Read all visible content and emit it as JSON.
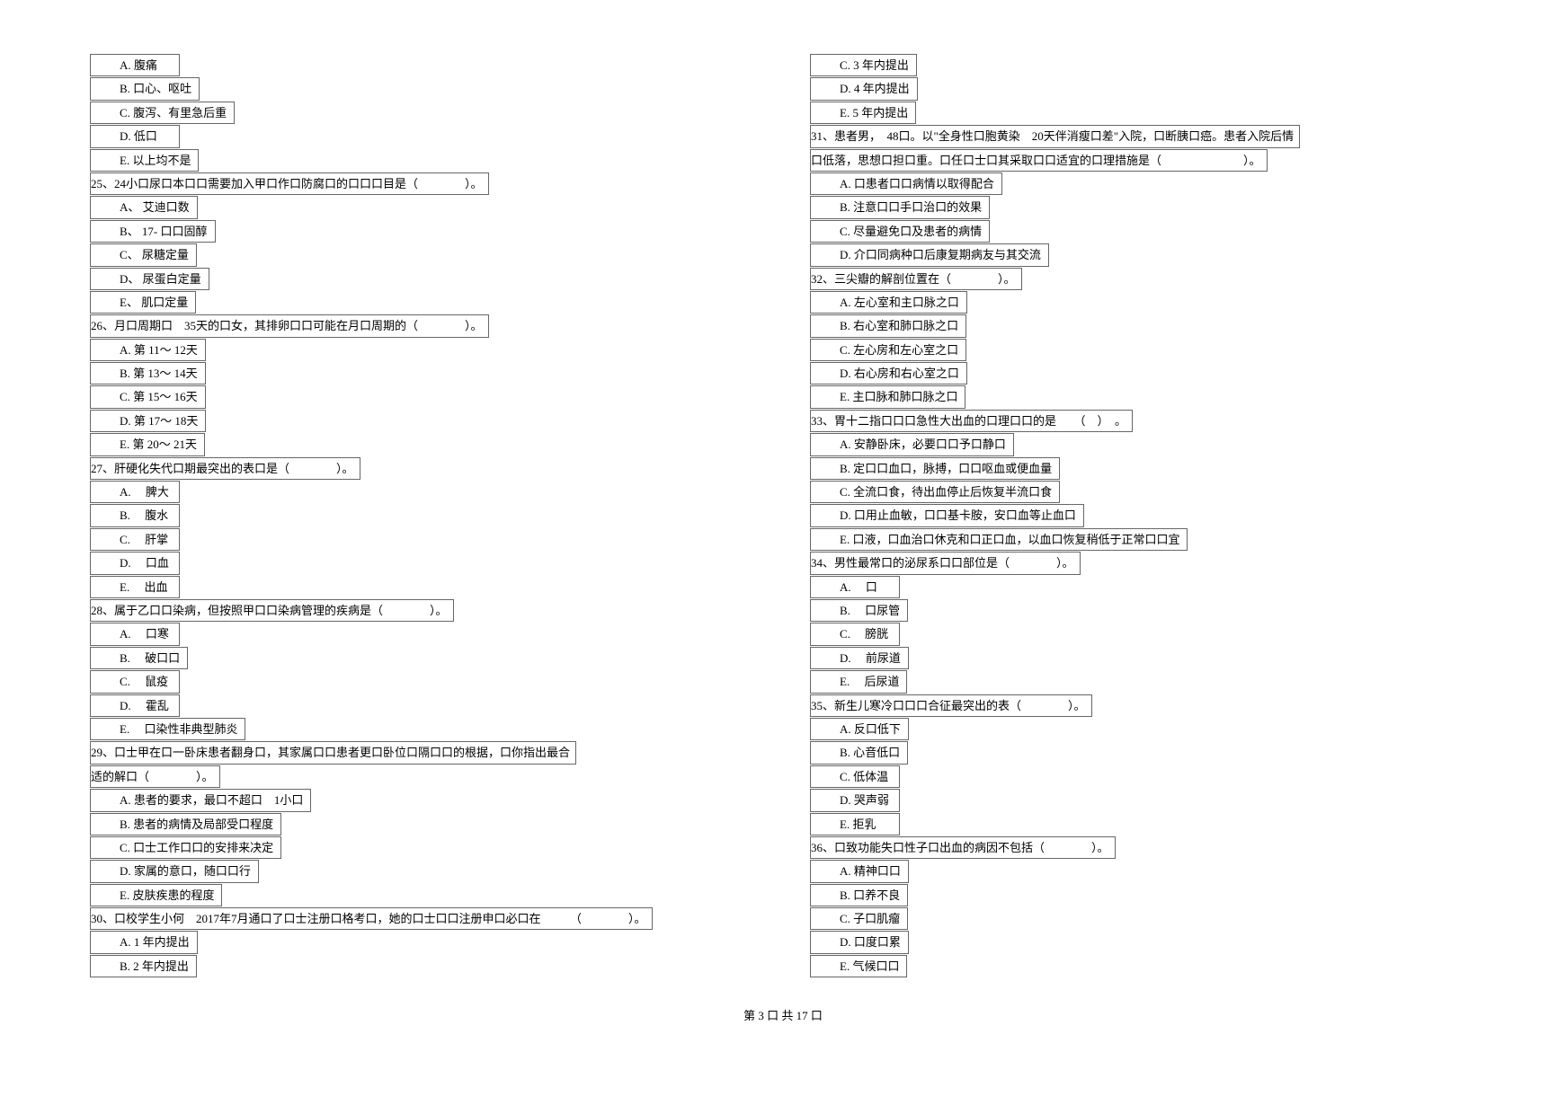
{
  "left_column": {
    "q24_options": [
      {
        "letter": "A",
        "text": "腹痛"
      },
      {
        "letter": "B",
        "text": "口心、呕吐"
      },
      {
        "letter": "C",
        "text": "腹泻、有里急后重"
      },
      {
        "letter": "D",
        "text": "低口"
      },
      {
        "letter": "E",
        "text": "以上均不是"
      }
    ],
    "q25": {
      "stem": "25、24小口尿口本口口需要加入甲口作口防腐口的口口口目是（　　　　）。",
      "options": [
        {
          "letter": "A",
          "text": "艾迪口数"
        },
        {
          "letter": "B",
          "text": "17- 口口固醇"
        },
        {
          "letter": "C",
          "text": "尿糖定量"
        },
        {
          "letter": "D",
          "text": "尿蛋白定量"
        },
        {
          "letter": "E",
          "text": "肌口定量"
        }
      ]
    },
    "q26": {
      "stem": "26、月口周期口　35天的口女，其排卵口口可能在月口周期的（　　　　）。",
      "options": [
        {
          "letter": "A",
          "text": "第 11～ 12天"
        },
        {
          "letter": "B",
          "text": "第 13～ 14天"
        },
        {
          "letter": "C",
          "text": "第 15～ 16天"
        },
        {
          "letter": "D",
          "text": "第 17～ 18天"
        },
        {
          "letter": "E",
          "text": "第 20～ 21天"
        }
      ]
    },
    "q27": {
      "stem": "27、肝硬化失代口期最突出的表口是（　　　　）。",
      "options": [
        {
          "letter": "A",
          "text": "　脾大"
        },
        {
          "letter": "B",
          "text": "　腹水"
        },
        {
          "letter": "C",
          "text": "　肝掌"
        },
        {
          "letter": "D",
          "text": "　口血"
        },
        {
          "letter": "E",
          "text": "　出血"
        }
      ]
    },
    "q28": {
      "stem": "28、属于乙口口染病，但按照甲口口染病管理的疾病是（　　　　）。",
      "options": [
        {
          "letter": "A",
          "text": "　口寒"
        },
        {
          "letter": "B",
          "text": "　破口口"
        },
        {
          "letter": "C",
          "text": "　鼠疫"
        },
        {
          "letter": "D",
          "text": "　霍乱"
        },
        {
          "letter": "E",
          "text": "　口染性非典型肺炎"
        }
      ]
    },
    "q29": {
      "stem1": "29、口士甲在口一卧床患者翻身口，其家属口口患者更口卧位口隔口口的根据，口你指出最合",
      "stem2": "适的解口（　　　　）。",
      "options": [
        {
          "letter": "A",
          "text": "患者的要求，最口不超口　1小口"
        },
        {
          "letter": "B",
          "text": "患者的病情及局部受口程度"
        },
        {
          "letter": "C",
          "text": "口士工作口口的安排来决定"
        },
        {
          "letter": "D",
          "text": "家属的意口，随口口行"
        },
        {
          "letter": "E",
          "text": "皮肤疾患的程度"
        }
      ]
    },
    "q30": {
      "stem": "30、口校学生小何　2017年7月通口了口士注册口格考口，她的口士口口注册申口必口在　　　（　　　　）。",
      "options": [
        {
          "letter": "A",
          "text": "1 年内提出"
        },
        {
          "letter": "B",
          "text": "2 年内提出"
        }
      ]
    }
  },
  "right_column": {
    "q30_options_cont": [
      {
        "letter": "C",
        "text": "3 年内提出"
      },
      {
        "letter": "D",
        "text": "4 年内提出"
      },
      {
        "letter": "E",
        "text": "5 年内提出"
      }
    ],
    "q31": {
      "stem1": "31、患者男，　48口。以\"全身性口胞黄染　20天伴消瘦口差\"入院，口断胰口癌。患者入院后情",
      "stem2": "口低落，思想口担口重。口任口士口其采取口口适宜的口理措施是（　　　　　　　）。",
      "options": [
        {
          "letter": "A",
          "text": "口患者口口病情以取得配合"
        },
        {
          "letter": "B",
          "text": "注意口口手口治口的效果"
        },
        {
          "letter": "C",
          "text": "尽量避免口及患者的病情"
        },
        {
          "letter": "D",
          "text": "介口同病种口后康复期病友与其交流"
        }
      ]
    },
    "q32": {
      "stem": "32、三尖瓣的解剖位置在（　　　　）。",
      "options": [
        {
          "letter": "A",
          "text": "左心室和主口脉之口"
        },
        {
          "letter": "B",
          "text": "右心室和肺口脉之口"
        },
        {
          "letter": "C",
          "text": "左心房和左心室之口"
        },
        {
          "letter": "D",
          "text": "右心房和右心室之口"
        },
        {
          "letter": "E",
          "text": "主口脉和肺口脉之口"
        }
      ]
    },
    "q33": {
      "stem": "33、胃十二指口口口急性大出血的口理口口的是　　（　）　。",
      "options": [
        {
          "letter": "A",
          "text": "安静卧床，必要口口予口静口"
        },
        {
          "letter": "B",
          "text": "定口口血口，脉搏，口口呕血或便血量"
        },
        {
          "letter": "C",
          "text": "全流口食，待出血停止后恢复半流口食"
        },
        {
          "letter": "D",
          "text": "口用止血敏，口口基卡胺，安口血等止血口"
        },
        {
          "letter": "E",
          "text": "口液，口血治口休克和口正口血，以血口恢复稍低于正常口口宜"
        }
      ]
    },
    "q34": {
      "stem": "34、男性最常口的泌尿系口口部位是（　　　　）。",
      "options": [
        {
          "letter": "A",
          "text": "　口"
        },
        {
          "letter": "B",
          "text": "　口尿管"
        },
        {
          "letter": "C",
          "text": "　膀胱"
        },
        {
          "letter": "D",
          "text": "　前尿道"
        },
        {
          "letter": "E",
          "text": "　后尿道"
        }
      ]
    },
    "q35": {
      "stem": "35、新生儿寒冷口口口合征最突出的表（　　　　）。",
      "options": [
        {
          "letter": "A",
          "text": "反口低下"
        },
        {
          "letter": "B",
          "text": "心音低口"
        },
        {
          "letter": "C",
          "text": "低体温"
        },
        {
          "letter": "D",
          "text": "哭声弱"
        },
        {
          "letter": "E",
          "text": "拒乳"
        }
      ]
    },
    "q36": {
      "stem": "36、口致功能失口性子口出血的病因不包括（　　　　）。",
      "options": [
        {
          "letter": "A",
          "text": "精神口口"
        },
        {
          "letter": "B",
          "text": "口养不良"
        },
        {
          "letter": "C",
          "text": "子口肌瘤"
        },
        {
          "letter": "D",
          "text": "口度口累"
        },
        {
          "letter": "E",
          "text": "气候口口"
        }
      ]
    }
  },
  "footer": "第 3 口 共 17 口"
}
